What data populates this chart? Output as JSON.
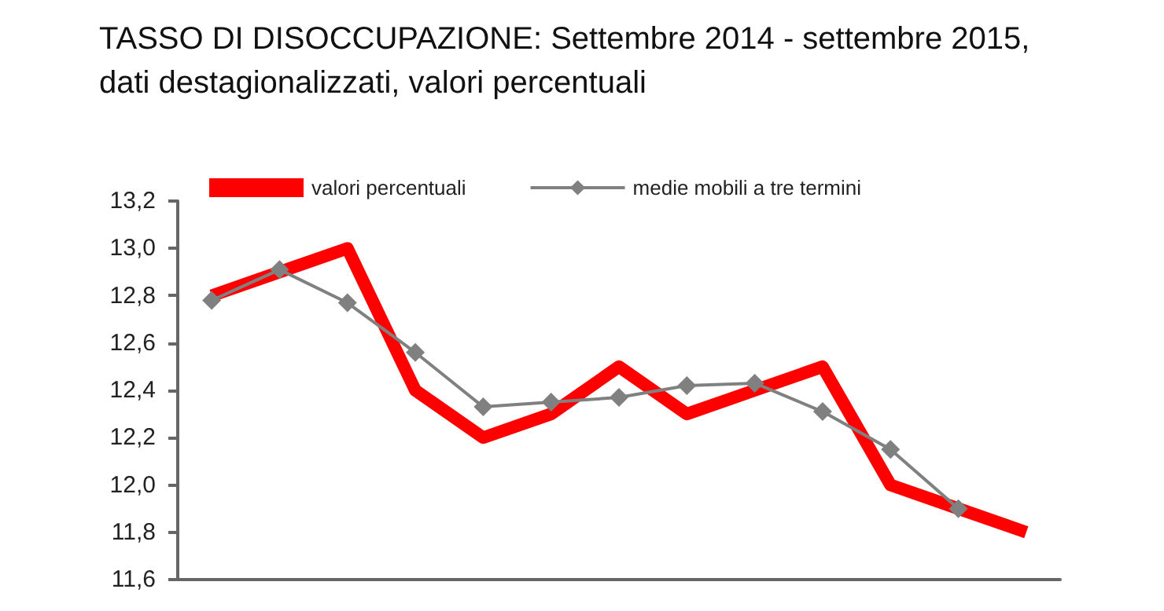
{
  "chart_data": {
    "type": "line",
    "title": "TASSO DI DISOCCUPAZIONE: Settembre 2014 - settembre 2015,",
    "subtitle": "dati destagionalizzati, valori percentuali",
    "categories": [
      null,
      null,
      null,
      null,
      null,
      null,
      null,
      null,
      null,
      null,
      null,
      null,
      null
    ],
    "series": [
      {
        "name": "valori percentuali",
        "color": "#ff0000",
        "marker": "none",
        "values": [
          12.8,
          12.9,
          13.0,
          12.4,
          12.2,
          12.3,
          12.5,
          12.3,
          12.4,
          12.5,
          12.0,
          11.9,
          11.8
        ]
      },
      {
        "name": "medie mobili a tre termini",
        "color": "#808080",
        "marker": "diamond",
        "values": [
          12.78,
          12.91,
          12.77,
          12.56,
          12.33,
          12.35,
          12.37,
          12.42,
          12.43,
          12.31,
          12.15,
          11.9,
          null
        ]
      }
    ],
    "ylim": [
      11.6,
      13.2
    ],
    "yticks": [
      {
        "value": 11.6,
        "label": "11,6"
      },
      {
        "value": 11.8,
        "label": "11,8"
      },
      {
        "value": 12.0,
        "label": "12,0"
      },
      {
        "value": 12.2,
        "label": "12,2"
      },
      {
        "value": 12.4,
        "label": "12,4"
      },
      {
        "value": 12.6,
        "label": "12,6"
      },
      {
        "value": 12.8,
        "label": "12,8"
      },
      {
        "value": 13.0,
        "label": "13,0"
      },
      {
        "value": 13.2,
        "label": "13,2"
      }
    ],
    "grid": false,
    "legend": "top",
    "tick_labels": "y"
  }
}
